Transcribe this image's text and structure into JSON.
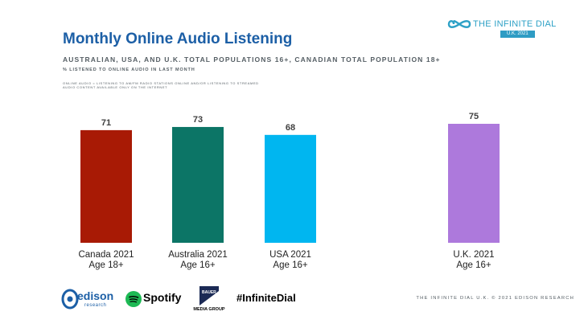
{
  "header": {
    "title": "Monthly Online Audio Listening",
    "subtitle": "AUSTRALIAN, USA, AND U.K. TOTAL POPULATIONS 16+, CANADIAN TOTAL POPULATION 18+",
    "note": "% LISTENED TO ONLINE AUDIO IN LAST MONTH",
    "definition": "ONLINE AUDIO = LISTENING TO AM/FM RADIO STATIONS ONLINE AND/OR LISTENING TO STREAMED AUDIO CONTENT AVAILABLE ONLY ON THE INTERNET"
  },
  "brand": {
    "name": "THE INFINITE DIAL",
    "tag": "U.K. 2021"
  },
  "chart_data": {
    "type": "bar",
    "categories": [
      [
        "Canada 2021",
        "Age 18+"
      ],
      [
        "Australia 2021",
        "Age 16+"
      ],
      [
        "USA 2021",
        "Age 16+"
      ],
      [
        "U.K. 2021",
        "Age 16+"
      ]
    ],
    "values": [
      71,
      73,
      68,
      75
    ],
    "colors": [
      "#a81a05",
      "#0c7566",
      "#00b6f0",
      "#ad79dc"
    ],
    "title": "",
    "xlabel": "",
    "ylabel": "",
    "ylim": [
      0,
      100
    ],
    "grid": false,
    "legend": "none"
  },
  "footer": {
    "edison": "edison",
    "edison_sub": "research",
    "spotify": "Spotify",
    "bauer": "MEDIA GROUP",
    "hashtag": "#InfiniteDial",
    "copyright": "THE INFINITE DIAL U.K. © 2021 EDISON RESEARCH"
  }
}
